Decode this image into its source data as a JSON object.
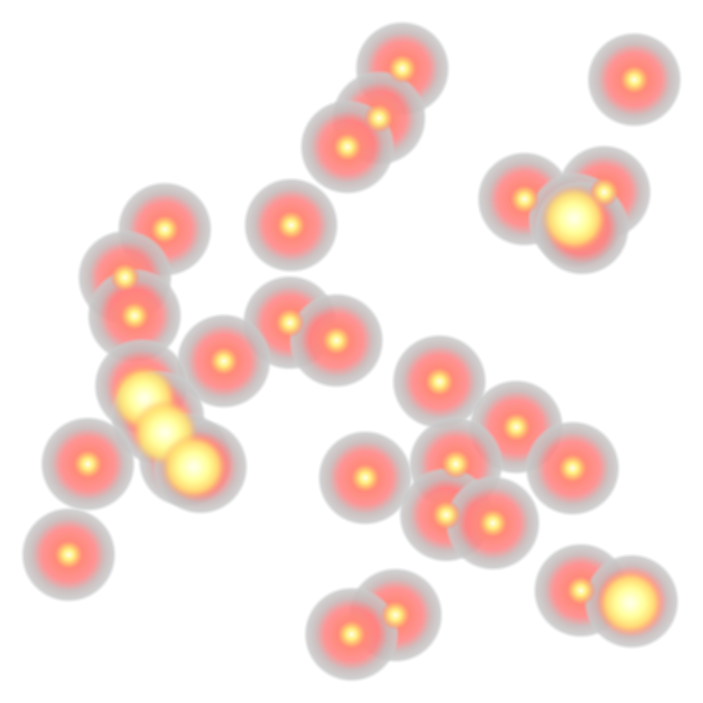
{
  "heatmap": {
    "background_color": "#ffffff",
    "color_ramp": [
      {
        "stop": 0.0,
        "color": "#c8c8c8"
      },
      {
        "stop": 0.4,
        "color": "#ff8080"
      },
      {
        "stop": 0.75,
        "color": "#ffdd77"
      },
      {
        "stop": 1.0,
        "color": "#ffffe8"
      }
    ]
  }
}
